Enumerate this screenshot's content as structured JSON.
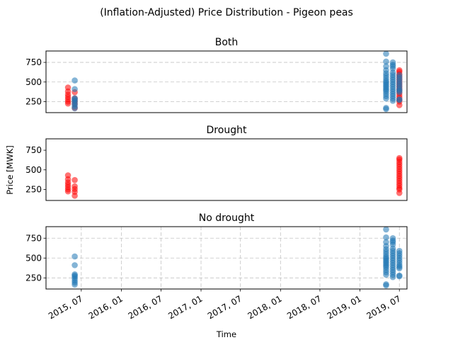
{
  "chart_data": {
    "type": "scatter",
    "title": "(Inflation-Adjusted) Price Distribution - Pigeon peas",
    "ylabel": "Price [MWK]",
    "xlabel": "Time",
    "x_tick_labels": [
      "2015, 07",
      "2016, 01",
      "2016, 07",
      "2017, 01",
      "2017, 07",
      "2018, 01",
      "2018, 07",
      "2019, 01",
      "2019, 07"
    ],
    "x_ticks": [
      "2015-07-01",
      "2016-01-01",
      "2016-07-01",
      "2017-01-01",
      "2017-07-01",
      "2018-01-01",
      "2018-07-01",
      "2019-01-01",
      "2019-07-01"
    ],
    "xlim": [
      "2015-01-20",
      "2019-08-05"
    ],
    "y_ticks": [
      250,
      500,
      750
    ],
    "ylim": [
      110,
      895
    ],
    "colors": {
      "drought": "#ff0000",
      "no_drought": "#1f77b4"
    },
    "panels": [
      {
        "title": "Both",
        "grid": "y",
        "series": [
          {
            "key": "drought",
            "points": [
              [
                "2015-05-01",
                430
              ],
              [
                "2015-05-01",
                380
              ],
              [
                "2015-05-01",
                340
              ],
              [
                "2015-05-01",
                310
              ],
              [
                "2015-05-01",
                280
              ],
              [
                "2015-05-01",
                250
              ],
              [
                "2015-05-01",
                225
              ],
              [
                "2015-06-01",
                370
              ],
              [
                "2015-06-01",
                290
              ],
              [
                "2015-06-01",
                255
              ],
              [
                "2015-06-01",
                220
              ],
              [
                "2015-06-01",
                170
              ],
              [
                "2019-07-01",
                650
              ],
              [
                "2019-07-01",
                630
              ],
              [
                "2019-07-01",
                600
              ],
              [
                "2019-07-01",
                570
              ],
              [
                "2019-07-01",
                540
              ],
              [
                "2019-07-01",
                510
              ],
              [
                "2019-07-01",
                480
              ],
              [
                "2019-07-01",
                450
              ],
              [
                "2019-07-01",
                420
              ],
              [
                "2019-07-01",
                390
              ],
              [
                "2019-07-01",
                360
              ],
              [
                "2019-07-01",
                330
              ],
              [
                "2019-07-01",
                300
              ],
              [
                "2019-07-01",
                270
              ],
              [
                "2019-07-01",
                250
              ],
              [
                "2019-07-01",
                205
              ]
            ]
          },
          {
            "key": "no_drought",
            "points": [
              [
                "2015-06-01",
                520
              ],
              [
                "2015-06-01",
                410
              ],
              [
                "2015-06-01",
                295
              ],
              [
                "2015-06-01",
                280
              ],
              [
                "2015-06-01",
                265
              ],
              [
                "2015-06-01",
                240
              ],
              [
                "2015-06-01",
                215
              ],
              [
                "2015-06-01",
                190
              ],
              [
                "2015-06-01",
                165
              ],
              [
                "2019-05-01",
                860
              ],
              [
                "2019-05-01",
                760
              ],
              [
                "2019-05-01",
                700
              ],
              [
                "2019-05-01",
                650
              ],
              [
                "2019-05-01",
                610
              ],
              [
                "2019-05-01",
                580
              ],
              [
                "2019-05-01",
                550
              ],
              [
                "2019-05-01",
                520
              ],
              [
                "2019-05-01",
                500
              ],
              [
                "2019-05-01",
                480
              ],
              [
                "2019-05-01",
                460
              ],
              [
                "2019-05-01",
                440
              ],
              [
                "2019-05-01",
                420
              ],
              [
                "2019-05-01",
                400
              ],
              [
                "2019-05-01",
                380
              ],
              [
                "2019-05-01",
                350
              ],
              [
                "2019-05-01",
                320
              ],
              [
                "2019-05-01",
                290
              ],
              [
                "2019-05-01",
                170
              ],
              [
                "2019-05-01",
                155
              ],
              [
                "2019-06-01",
                750
              ],
              [
                "2019-06-01",
                720
              ],
              [
                "2019-06-01",
                700
              ],
              [
                "2019-06-01",
                670
              ],
              [
                "2019-06-01",
                620
              ],
              [
                "2019-06-01",
                590
              ],
              [
                "2019-06-01",
                560
              ],
              [
                "2019-06-01",
                530
              ],
              [
                "2019-06-01",
                500
              ],
              [
                "2019-06-01",
                470
              ],
              [
                "2019-06-01",
                440
              ],
              [
                "2019-06-01",
                410
              ],
              [
                "2019-06-01",
                380
              ],
              [
                "2019-06-01",
                350
              ],
              [
                "2019-06-01",
                320
              ],
              [
                "2019-06-01",
                290
              ],
              [
                "2019-06-01",
                260
              ],
              [
                "2019-07-01",
                590
              ],
              [
                "2019-07-01",
                560
              ],
              [
                "2019-07-01",
                530
              ],
              [
                "2019-07-01",
                500
              ],
              [
                "2019-07-01",
                470
              ],
              [
                "2019-07-01",
                440
              ],
              [
                "2019-07-01",
                410
              ],
              [
                "2019-07-01",
                390
              ],
              [
                "2019-07-01",
                370
              ],
              [
                "2019-07-01",
                280
              ],
              [
                "2019-07-01",
                270
              ]
            ]
          }
        ]
      },
      {
        "title": "Drought",
        "grid": "none",
        "series": [
          {
            "key": "drought",
            "points": [
              [
                "2015-05-01",
                430
              ],
              [
                "2015-05-01",
                380
              ],
              [
                "2015-05-01",
                340
              ],
              [
                "2015-05-01",
                310
              ],
              [
                "2015-05-01",
                280
              ],
              [
                "2015-05-01",
                250
              ],
              [
                "2015-05-01",
                225
              ],
              [
                "2015-06-01",
                370
              ],
              [
                "2015-06-01",
                290
              ],
              [
                "2015-06-01",
                255
              ],
              [
                "2015-06-01",
                220
              ],
              [
                "2015-06-01",
                170
              ],
              [
                "2019-07-01",
                650
              ],
              [
                "2019-07-01",
                630
              ],
              [
                "2019-07-01",
                600
              ],
              [
                "2019-07-01",
                570
              ],
              [
                "2019-07-01",
                540
              ],
              [
                "2019-07-01",
                510
              ],
              [
                "2019-07-01",
                480
              ],
              [
                "2019-07-01",
                450
              ],
              [
                "2019-07-01",
                420
              ],
              [
                "2019-07-01",
                390
              ],
              [
                "2019-07-01",
                360
              ],
              [
                "2019-07-01",
                330
              ],
              [
                "2019-07-01",
                300
              ],
              [
                "2019-07-01",
                270
              ],
              [
                "2019-07-01",
                250
              ],
              [
                "2019-07-01",
                205
              ]
            ]
          }
        ]
      },
      {
        "title": "No drought",
        "grid": "both",
        "series": [
          {
            "key": "no_drought",
            "points": [
              [
                "2015-06-01",
                520
              ],
              [
                "2015-06-01",
                410
              ],
              [
                "2015-06-01",
                295
              ],
              [
                "2015-06-01",
                280
              ],
              [
                "2015-06-01",
                265
              ],
              [
                "2015-06-01",
                240
              ],
              [
                "2015-06-01",
                215
              ],
              [
                "2015-06-01",
                190
              ],
              [
                "2015-06-01",
                165
              ],
              [
                "2019-05-01",
                860
              ],
              [
                "2019-05-01",
                760
              ],
              [
                "2019-05-01",
                700
              ],
              [
                "2019-05-01",
                650
              ],
              [
                "2019-05-01",
                610
              ],
              [
                "2019-05-01",
                580
              ],
              [
                "2019-05-01",
                550
              ],
              [
                "2019-05-01",
                520
              ],
              [
                "2019-05-01",
                500
              ],
              [
                "2019-05-01",
                480
              ],
              [
                "2019-05-01",
                460
              ],
              [
                "2019-05-01",
                440
              ],
              [
                "2019-05-01",
                420
              ],
              [
                "2019-05-01",
                400
              ],
              [
                "2019-05-01",
                380
              ],
              [
                "2019-05-01",
                350
              ],
              [
                "2019-05-01",
                320
              ],
              [
                "2019-05-01",
                290
              ],
              [
                "2019-05-01",
                170
              ],
              [
                "2019-05-01",
                155
              ],
              [
                "2019-06-01",
                750
              ],
              [
                "2019-06-01",
                720
              ],
              [
                "2019-06-01",
                700
              ],
              [
                "2019-06-01",
                670
              ],
              [
                "2019-06-01",
                620
              ],
              [
                "2019-06-01",
                590
              ],
              [
                "2019-06-01",
                560
              ],
              [
                "2019-06-01",
                530
              ],
              [
                "2019-06-01",
                500
              ],
              [
                "2019-06-01",
                470
              ],
              [
                "2019-06-01",
                440
              ],
              [
                "2019-06-01",
                410
              ],
              [
                "2019-06-01",
                380
              ],
              [
                "2019-06-01",
                350
              ],
              [
                "2019-06-01",
                320
              ],
              [
                "2019-06-01",
                290
              ],
              [
                "2019-06-01",
                260
              ],
              [
                "2019-07-01",
                590
              ],
              [
                "2019-07-01",
                560
              ],
              [
                "2019-07-01",
                530
              ],
              [
                "2019-07-01",
                500
              ],
              [
                "2019-07-01",
                470
              ],
              [
                "2019-07-01",
                440
              ],
              [
                "2019-07-01",
                410
              ],
              [
                "2019-07-01",
                390
              ],
              [
                "2019-07-01",
                370
              ],
              [
                "2019-07-01",
                280
              ],
              [
                "2019-07-01",
                270
              ]
            ]
          }
        ]
      }
    ]
  }
}
